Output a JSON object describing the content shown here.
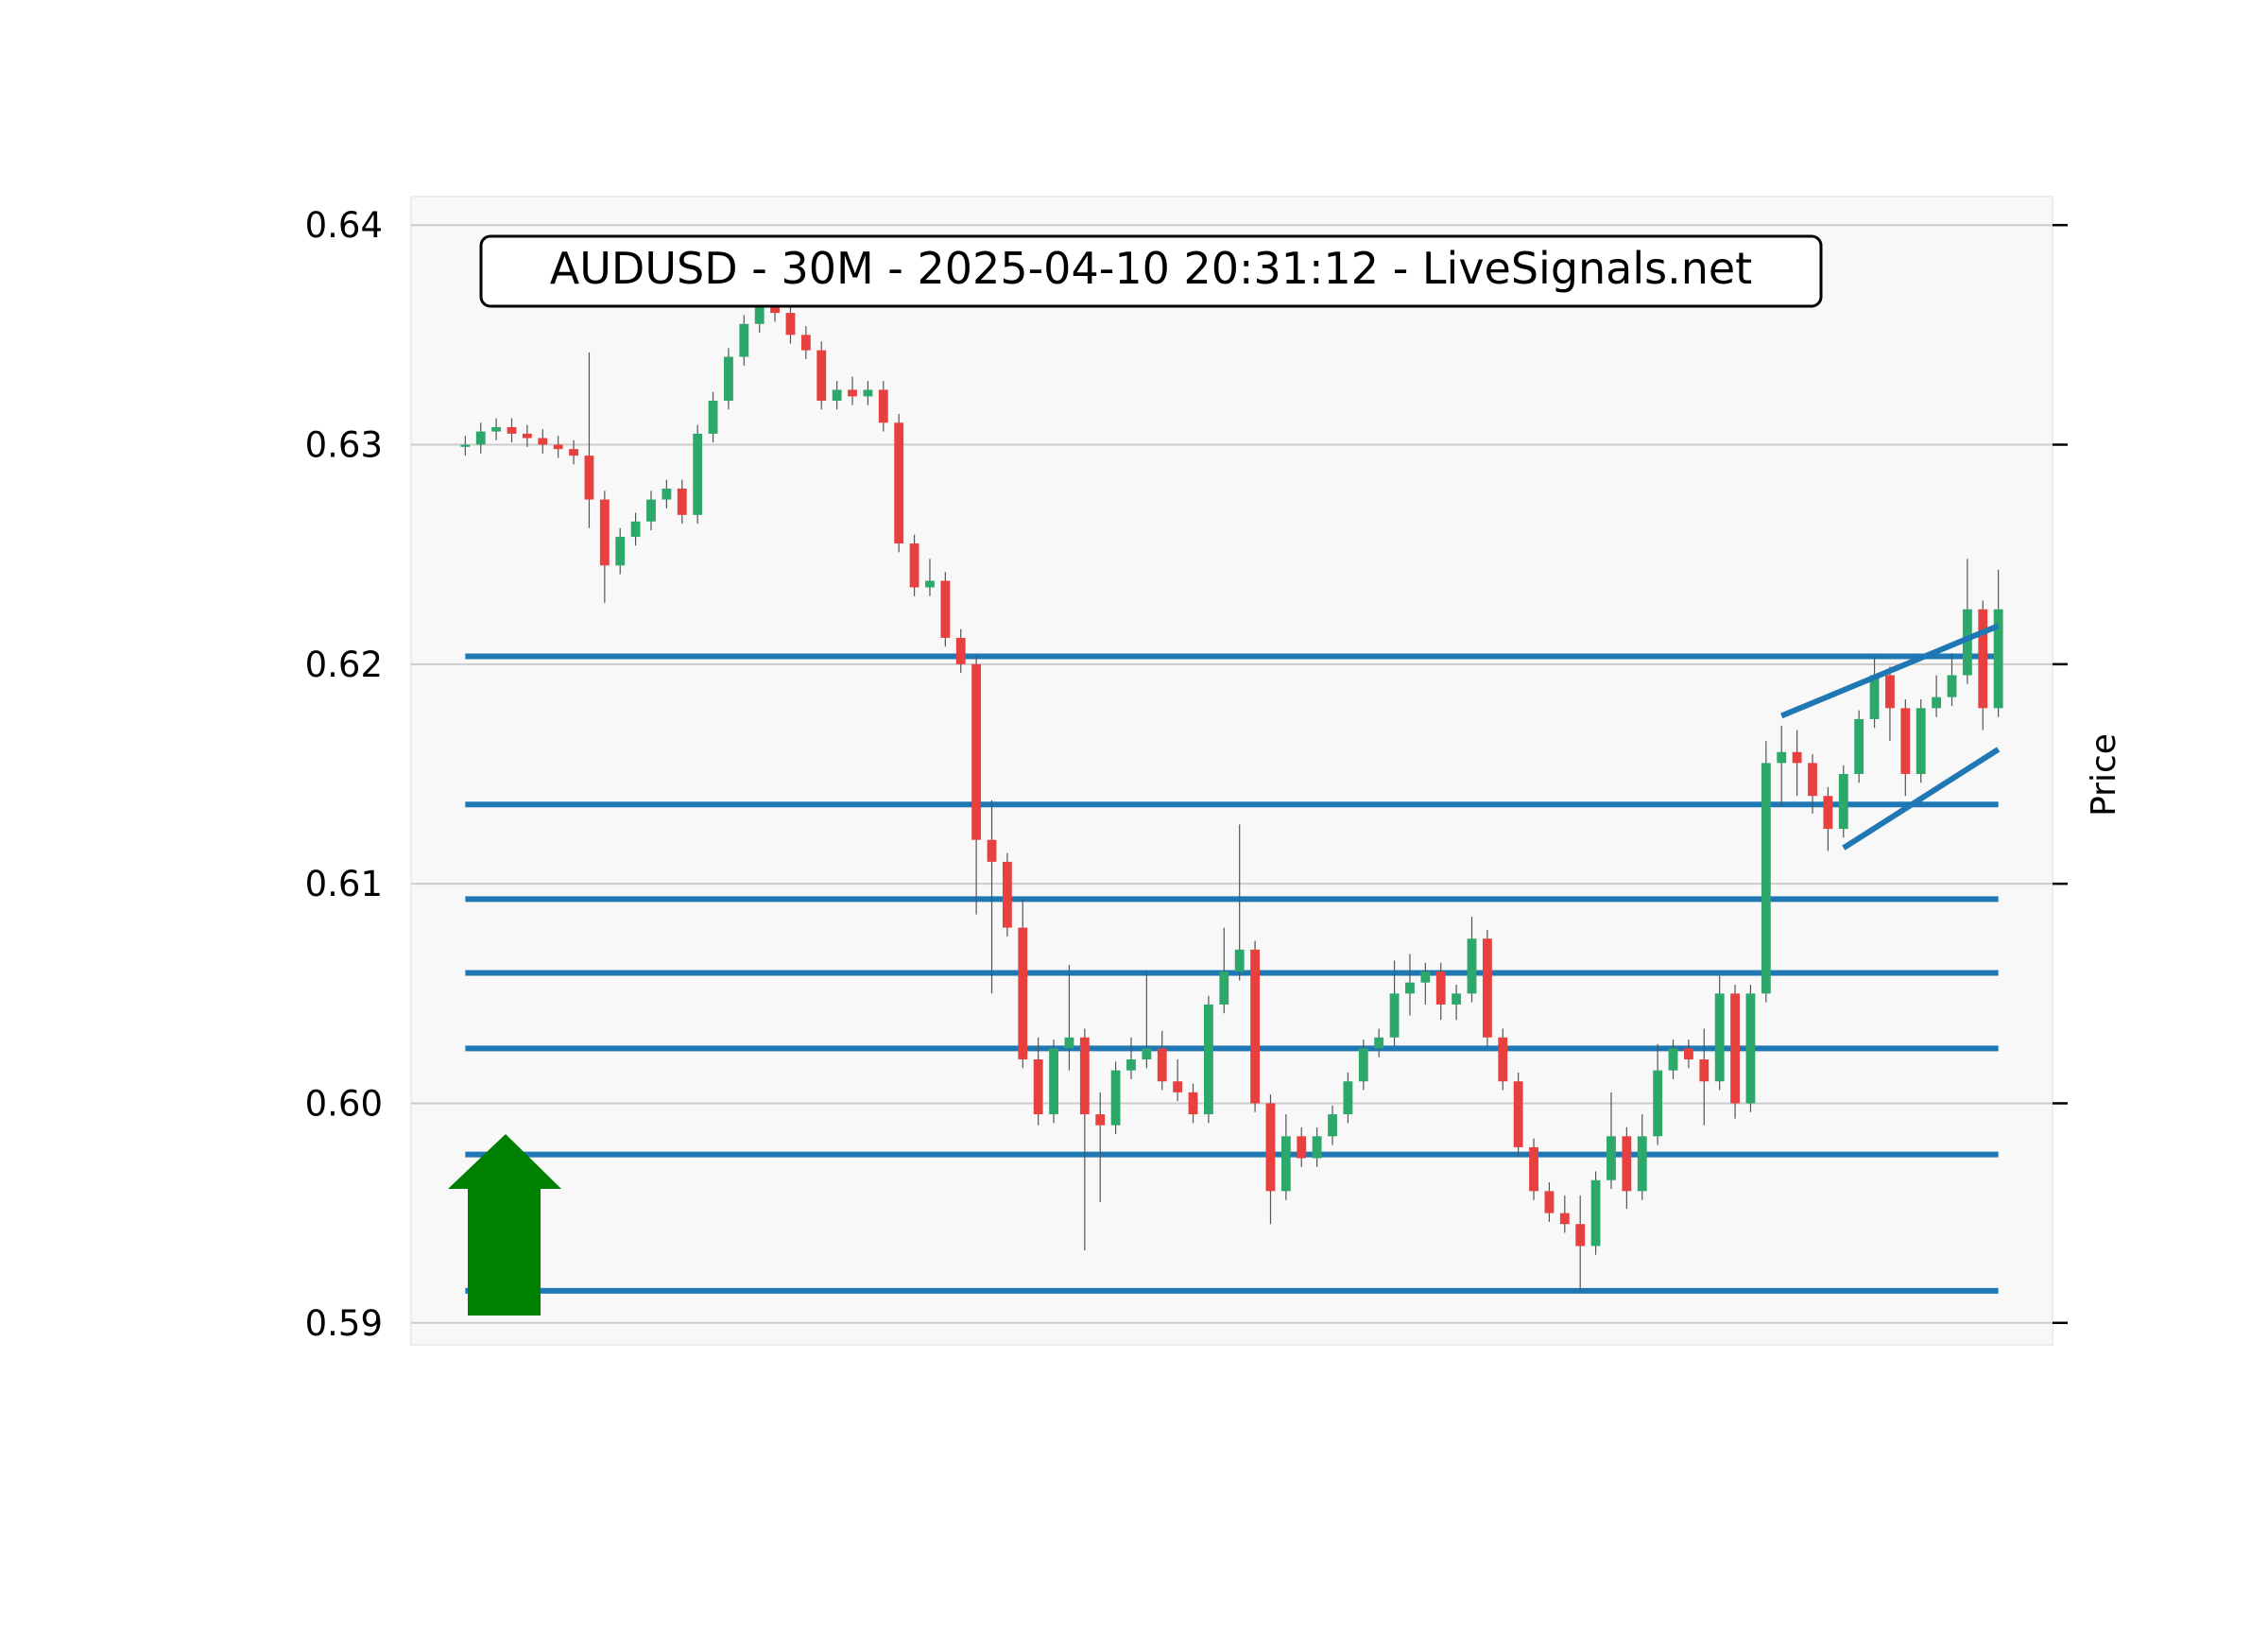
{
  "chart_data": {
    "type": "candlestick",
    "title": "AUDUSD - 30M - 2025-04-10 20:31:12 - LiveSignals.net",
    "y_label": "Price",
    "ylim": [
      0.589,
      0.6413
    ],
    "yticks": [
      0.59,
      {
        "value": 0.6,
        "label": "0.60"
      },
      0.61,
      0.62,
      0.63,
      0.64
    ],
    "grid": true,
    "up_color": "#2ca86a",
    "down_color": "#e8403f",
    "level_color": "#1f77b4",
    "xlim": [
      -3.5,
      102.5
    ],
    "categories": [
      null,
      null,
      null,
      null,
      null,
      null,
      null,
      null,
      null,
      null,
      null,
      null,
      null,
      null,
      null,
      null,
      null,
      null,
      null,
      null,
      null,
      null,
      null,
      null,
      null,
      null,
      null,
      null,
      null,
      null,
      null,
      null,
      null,
      null,
      null,
      null,
      null,
      null,
      null,
      null,
      null,
      null,
      null,
      null,
      null,
      null,
      null,
      null,
      null,
      null,
      null,
      null,
      null,
      null,
      null,
      null,
      null,
      null,
      null,
      null,
      null,
      null,
      null,
      null,
      null,
      null,
      null,
      null,
      null,
      null,
      null,
      null,
      null,
      null,
      null,
      null,
      null,
      null,
      null,
      null,
      null,
      null,
      null,
      null,
      null,
      null,
      null,
      null,
      null,
      null,
      null,
      null,
      null,
      null,
      null,
      null,
      null,
      null,
      null,
      null
    ],
    "open": [
      0.6299,
      0.63,
      0.6306,
      0.6308,
      0.6305,
      0.6303,
      0.63,
      0.6298,
      0.6295,
      0.6275,
      0.6245,
      0.6258,
      0.6265,
      0.6275,
      0.628,
      0.6268,
      0.6305,
      0.632,
      0.634,
      0.6355,
      0.6365,
      0.636,
      0.635,
      0.6343,
      0.632,
      0.6325,
      0.6322,
      0.6325,
      0.631,
      0.6255,
      0.6235,
      0.6238,
      0.6212,
      0.62,
      0.612,
      0.611,
      0.608,
      0.602,
      0.5995,
      0.6025,
      0.603,
      0.5995,
      0.599,
      0.6015,
      0.602,
      0.6025,
      0.601,
      0.6005,
      0.5995,
      0.6045,
      0.606,
      0.607,
      0.6,
      0.596,
      0.5985,
      0.5975,
      0.5985,
      0.5995,
      0.601,
      0.6025,
      0.603,
      0.605,
      0.6055,
      0.606,
      0.6045,
      0.605,
      0.6075,
      0.603,
      0.601,
      0.598,
      0.596,
      0.595,
      0.5945,
      0.5935,
      0.5965,
      0.5985,
      0.596,
      0.5985,
      0.6015,
      0.6025,
      0.602,
      0.601,
      0.605,
      0.6,
      0.605,
      0.6155,
      0.616,
      0.6155,
      0.614,
      0.6125,
      0.615,
      0.6175,
      0.6195,
      0.618,
      0.615,
      0.618,
      0.6185,
      0.6195,
      0.6225,
      0.618
    ],
    "high": [
      0.6304,
      0.631,
      0.6312,
      0.6312,
      0.6309,
      0.6307,
      0.6304,
      0.6302,
      0.6342,
      0.6279,
      0.6262,
      0.6269,
      0.6279,
      0.6284,
      0.6284,
      0.6309,
      0.6324,
      0.6344,
      0.6359,
      0.6368,
      0.6369,
      0.6364,
      0.6354,
      0.6347,
      0.6329,
      0.6331,
      0.6329,
      0.6329,
      0.6314,
      0.6259,
      0.6248,
      0.6242,
      0.6216,
      0.6204,
      0.6138,
      0.6114,
      0.6093,
      0.603,
      0.6029,
      0.6063,
      0.6034,
      0.6005,
      0.6019,
      0.603,
      0.606,
      0.6033,
      0.602,
      0.6009,
      0.6049,
      0.608,
      0.6127,
      0.6074,
      0.6004,
      0.5995,
      0.5989,
      0.5989,
      0.5999,
      0.6014,
      0.6029,
      0.6034,
      0.6065,
      0.6068,
      0.6064,
      0.6064,
      0.6054,
      0.6085,
      0.6079,
      0.6034,
      0.6014,
      0.5984,
      0.5964,
      0.5958,
      0.5958,
      0.5969,
      0.6005,
      0.5989,
      0.5995,
      0.6027,
      0.6029,
      0.6029,
      0.6034,
      0.6058,
      0.6054,
      0.6054,
      0.6165,
      0.6172,
      0.617,
      0.6159,
      0.6144,
      0.6154,
      0.6179,
      0.6203,
      0.6199,
      0.6184,
      0.6184,
      0.6195,
      0.6205,
      0.6248,
      0.6229,
      0.6243
    ],
    "low": [
      0.6295,
      0.6296,
      0.6302,
      0.6301,
      0.6299,
      0.6296,
      0.6294,
      0.6291,
      0.6262,
      0.6228,
      0.6241,
      0.6254,
      0.6261,
      0.6271,
      0.6264,
      0.6264,
      0.6301,
      0.6316,
      0.6336,
      0.6351,
      0.6356,
      0.6346,
      0.6339,
      0.6316,
      0.6316,
      0.6318,
      0.6318,
      0.6306,
      0.6251,
      0.6231,
      0.6231,
      0.6208,
      0.6196,
      0.6086,
      0.605,
      0.6076,
      0.6016,
      0.599,
      0.5991,
      0.6015,
      0.5933,
      0.5955,
      0.5986,
      0.6011,
      0.6016,
      0.6006,
      0.6001,
      0.5991,
      0.5991,
      0.6041,
      0.6056,
      0.5996,
      0.5945,
      0.5956,
      0.5971,
      0.5971,
      0.5981,
      0.5991,
      0.6006,
      0.6021,
      0.6026,
      0.604,
      0.6045,
      0.6038,
      0.6038,
      0.6046,
      0.6026,
      0.6006,
      0.5976,
      0.5956,
      0.5946,
      0.5941,
      0.5915,
      0.5931,
      0.5961,
      0.5952,
      0.5956,
      0.5981,
      0.6011,
      0.6016,
      0.599,
      0.6006,
      0.5993,
      0.5996,
      0.6046,
      0.6135,
      0.614,
      0.6132,
      0.6115,
      0.6121,
      0.6146,
      0.6171,
      0.6165,
      0.614,
      0.6146,
      0.6176,
      0.6181,
      0.6191,
      0.617,
      0.6176
    ],
    "close": [
      0.63,
      0.6306,
      0.6308,
      0.6305,
      0.6303,
      0.63,
      0.6298,
      0.6295,
      0.6275,
      0.6245,
      0.6258,
      0.6265,
      0.6275,
      0.628,
      0.6268,
      0.6305,
      0.632,
      0.634,
      0.6355,
      0.6365,
      0.636,
      0.635,
      0.6343,
      0.632,
      0.6325,
      0.6322,
      0.6325,
      0.631,
      0.6255,
      0.6235,
      0.6238,
      0.6212,
      0.62,
      0.612,
      0.611,
      0.608,
      0.602,
      0.5995,
      0.6025,
      0.603,
      0.5995,
      0.599,
      0.6015,
      0.602,
      0.6025,
      0.601,
      0.6005,
      0.5995,
      0.6045,
      0.606,
      0.607,
      0.6,
      0.596,
      0.5985,
      0.5975,
      0.5985,
      0.5995,
      0.601,
      0.6025,
      0.603,
      0.605,
      0.6055,
      0.606,
      0.6045,
      0.605,
      0.6075,
      0.603,
      0.601,
      0.598,
      0.596,
      0.595,
      0.5945,
      0.5935,
      0.5965,
      0.5985,
      0.596,
      0.5985,
      0.6015,
      0.6025,
      0.602,
      0.601,
      0.605,
      0.6,
      0.605,
      0.6155,
      0.616,
      0.6155,
      0.614,
      0.6125,
      0.615,
      0.6175,
      0.6195,
      0.618,
      0.615,
      0.618,
      0.6185,
      0.6195,
      0.6225,
      0.618,
      0.6225
    ],
    "levels": [
      0.62036,
      0.61361,
      0.6093,
      0.60594,
      0.6025,
      0.59767,
      0.59146
    ],
    "trendlines": [
      {
        "x": [
          85,
          99
        ],
        "y": [
          0.61765,
          0.62175
        ]
      },
      {
        "x": [
          89,
          99
        ],
        "y": [
          0.61163,
          0.61612
        ]
      }
    ]
  }
}
